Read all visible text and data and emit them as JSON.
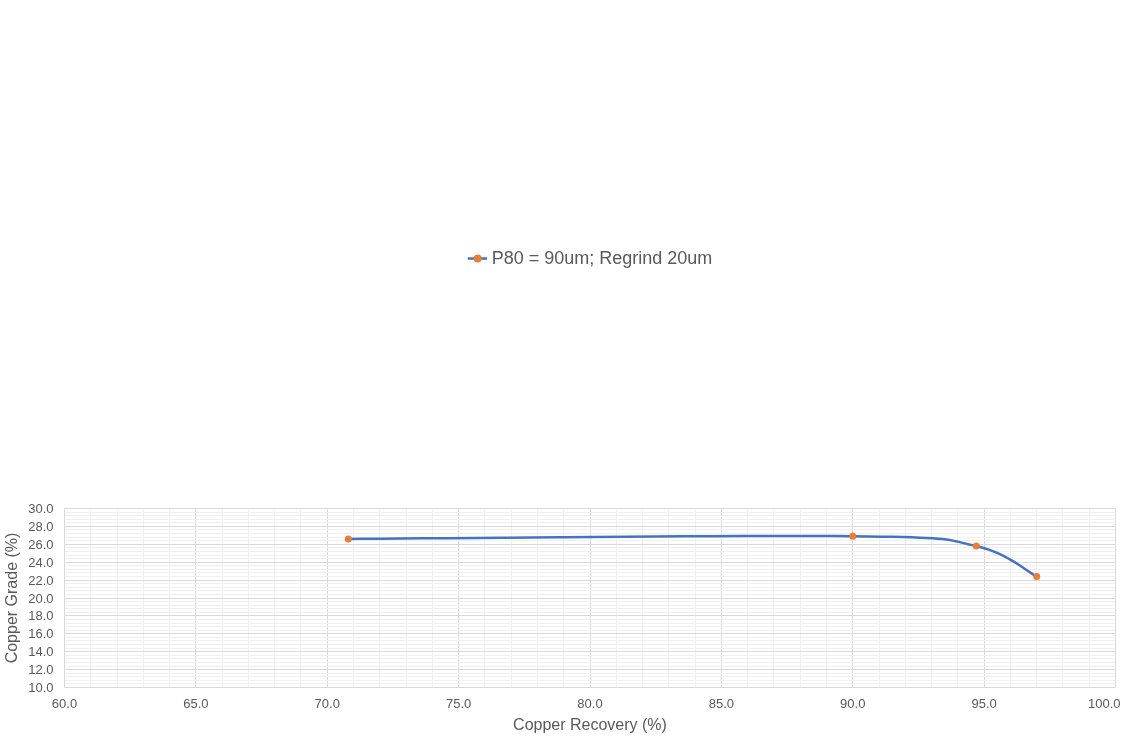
{
  "chart_data": {
    "type": "line",
    "xlabel": "Copper Recovery (%)",
    "ylabel": "Copper Grade (%)",
    "xlim": [
      60,
      100
    ],
    "ylim": [
      10,
      30
    ],
    "xticks": [
      {
        "value": 60,
        "label": "60.0"
      },
      {
        "value": 65,
        "label": "65.0"
      },
      {
        "value": 70,
        "label": "70.0"
      },
      {
        "value": 75,
        "label": "75.0"
      },
      {
        "value": 80,
        "label": "80.0"
      },
      {
        "value": 85,
        "label": "85.0"
      },
      {
        "value": 90,
        "label": "90.0"
      },
      {
        "value": 95,
        "label": "95.0"
      },
      {
        "value": 100,
        "label": "100.0"
      }
    ],
    "yticks": [
      {
        "value": 10,
        "label": "10.0"
      },
      {
        "value": 12,
        "label": "12.0"
      },
      {
        "value": 14,
        "label": "14.0"
      },
      {
        "value": 16,
        "label": "16.0"
      },
      {
        "value": 18,
        "label": "18.0"
      },
      {
        "value": 20,
        "label": "20.0"
      },
      {
        "value": 22,
        "label": "22.0"
      },
      {
        "value": 24,
        "label": "24.0"
      },
      {
        "value": 26,
        "label": "26.0"
      },
      {
        "value": 28,
        "label": "28.0"
      },
      {
        "value": 30,
        "label": "30.0"
      }
    ],
    "grid": true,
    "legend": "top",
    "marker": "circle",
    "line_style": "solid",
    "series": [
      {
        "name": "P80 = 90um; Regrind 20um",
        "color": "#4472c4",
        "colors": [
          "#ed7d31",
          "#ed7d31",
          "#ed7d31",
          "#ed7d31"
        ],
        "x": [
          70.8,
          90.0,
          94.7,
          97.0
        ],
        "values": [
          26.6,
          26.9,
          25.8,
          22.4
        ]
      }
    ]
  }
}
